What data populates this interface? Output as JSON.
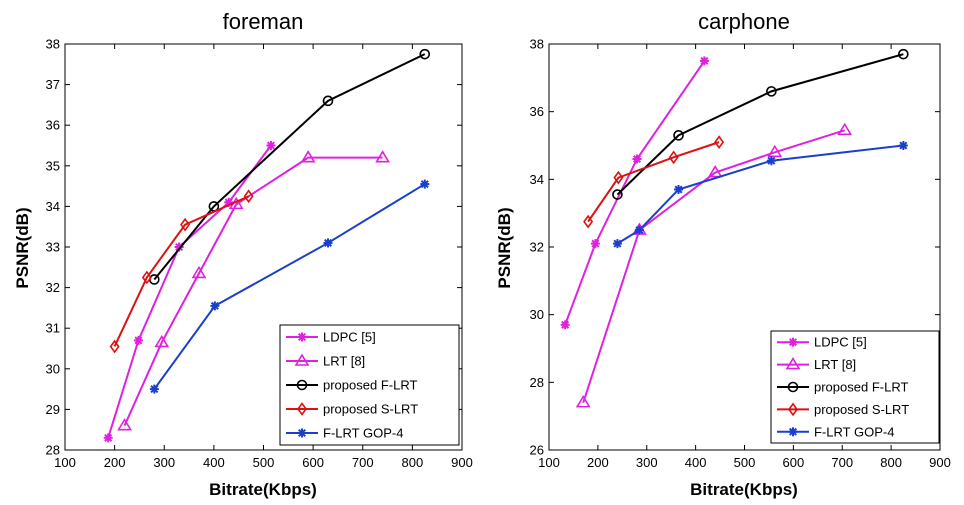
{
  "chart_data": [
    {
      "type": "line",
      "title": "foreman",
      "xlabel": "Bitrate(Kbps)",
      "ylabel": "PSNR(dB)",
      "xlim": [
        100,
        900
      ],
      "ylim": [
        28,
        38
      ],
      "xticks": [
        100,
        200,
        300,
        400,
        500,
        600,
        700,
        800,
        900
      ],
      "yticks": [
        28,
        29,
        30,
        31,
        32,
        33,
        34,
        35,
        36,
        37,
        38
      ],
      "grid": false,
      "legend_position": "bottom-right",
      "series": [
        {
          "name": "LDPC [5]",
          "color": "#e020e0",
          "marker": "star",
          "points": [
            [
              187,
              28.3
            ],
            [
              248,
              30.7
            ],
            [
              330,
              33.0
            ],
            [
              430,
              34.1
            ],
            [
              515,
              35.5
            ]
          ]
        },
        {
          "name": "LRT [8]",
          "color": "#e020e0",
          "marker": "triangle",
          "points": [
            [
              220,
              28.6
            ],
            [
              295,
              30.65
            ],
            [
              370,
              32.35
            ],
            [
              445,
              34.05
            ],
            [
              590,
              35.2
            ],
            [
              740,
              35.2
            ]
          ]
        },
        {
          "name": "proposed F-LRT",
          "color": "#000000",
          "marker": "circle",
          "points": [
            [
              280,
              32.2
            ],
            [
              400,
              34.0
            ],
            [
              630,
              36.6
            ],
            [
              825,
              37.75
            ]
          ]
        },
        {
          "name": "proposed S-LRT",
          "color": "#dd1111",
          "marker": "diamond",
          "points": [
            [
              200,
              30.55
            ],
            [
              265,
              32.25
            ],
            [
              342,
              33.55
            ],
            [
              470,
              34.25
            ]
          ]
        },
        {
          "name": "F-LRT GOP-4",
          "color": "#1a3fcc",
          "marker": "star",
          "points": [
            [
              280,
              29.5
            ],
            [
              402,
              31.55
            ],
            [
              630,
              33.1
            ],
            [
              825,
              34.55
            ]
          ]
        }
      ]
    },
    {
      "type": "line",
      "title": "carphone",
      "xlabel": "Bitrate(Kbps)",
      "ylabel": "PSNR(dB)",
      "xlim": [
        100,
        900
      ],
      "ylim": [
        26,
        38
      ],
      "xticks": [
        100,
        200,
        300,
        400,
        500,
        600,
        700,
        800,
        900
      ],
      "yticks": [
        26,
        28,
        30,
        32,
        34,
        36,
        38
      ],
      "grid": false,
      "legend_position": "bottom-right",
      "series": [
        {
          "name": "LDPC [5]",
          "color": "#e020e0",
          "marker": "star",
          "points": [
            [
              133,
              29.7
            ],
            [
              195,
              32.1
            ],
            [
              280,
              34.6
            ],
            [
              418,
              37.5
            ]
          ]
        },
        {
          "name": "LRT [8]",
          "color": "#e020e0",
          "marker": "triangle",
          "points": [
            [
              170,
              27.4
            ],
            [
              285,
              32.5
            ],
            [
              440,
              34.2
            ],
            [
              562,
              34.8
            ],
            [
              705,
              35.45
            ]
          ]
        },
        {
          "name": "proposed F-LRT",
          "color": "#000000",
          "marker": "circle",
          "points": [
            [
              240,
              33.55
            ],
            [
              365,
              35.3
            ],
            [
              555,
              36.6
            ],
            [
              825,
              37.7
            ]
          ]
        },
        {
          "name": "proposed S-LRT",
          "color": "#dd1111",
          "marker": "diamond",
          "points": [
            [
              180,
              32.75
            ],
            [
              242,
              34.05
            ],
            [
              355,
              34.65
            ],
            [
              448,
              35.1
            ]
          ]
        },
        {
          "name": "F-LRT GOP-4",
          "color": "#1a3fcc",
          "marker": "star",
          "points": [
            [
              240,
              32.1
            ],
            [
              285,
              32.5
            ],
            [
              365,
              33.7
            ],
            [
              555,
              34.55
            ],
            [
              825,
              35.0
            ]
          ]
        }
      ]
    }
  ]
}
